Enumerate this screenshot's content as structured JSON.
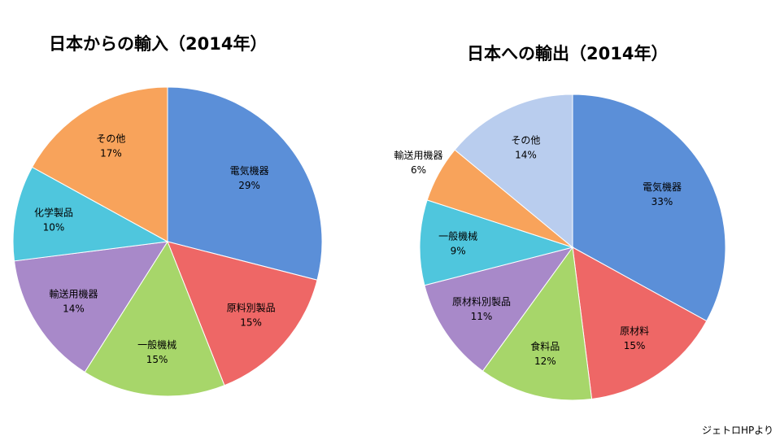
{
  "chart_data": [
    {
      "type": "pie",
      "title": "日本からの輸入（2014年）",
      "slices": [
        {
          "label": "電気機器",
          "value": 29,
          "display": "29%",
          "color": "#5b8fd8"
        },
        {
          "label": "原料別製品",
          "value": 15,
          "display": "15%",
          "color": "#ee6766"
        },
        {
          "label": "一般機械",
          "value": 15,
          "display": "15%",
          "color": "#a7d66a"
        },
        {
          "label": "輸送用機器",
          "value": 14,
          "display": "14%",
          "color": "#a889c9"
        },
        {
          "label": "化学製品",
          "value": 10,
          "display": "10%",
          "color": "#4fc6dd"
        },
        {
          "label": "その他",
          "value": 17,
          "display": "17%",
          "color": "#f8a35b"
        }
      ]
    },
    {
      "type": "pie",
      "title": "日本への輸出（2014年）",
      "slices": [
        {
          "label": "電気機器",
          "value": 33,
          "display": "33%",
          "color": "#5b8fd8"
        },
        {
          "label": "原材料",
          "value": 15,
          "display": "15%",
          "color": "#ee6766"
        },
        {
          "label": "食料品",
          "value": 12,
          "display": "12%",
          "color": "#a7d66a"
        },
        {
          "label": "原材料別製品",
          "value": 11,
          "display": "11%",
          "color": "#a889c9"
        },
        {
          "label": "一般機械",
          "value": 9,
          "display": "9%",
          "color": "#4fc6dd"
        },
        {
          "label": "輸送用機器",
          "value": 6,
          "display": "6%",
          "color": "#f8a35b"
        },
        {
          "label": "その他",
          "value": 14,
          "display": "14%",
          "color": "#b9cdee"
        }
      ]
    }
  ],
  "source": "ジェトロHPより"
}
